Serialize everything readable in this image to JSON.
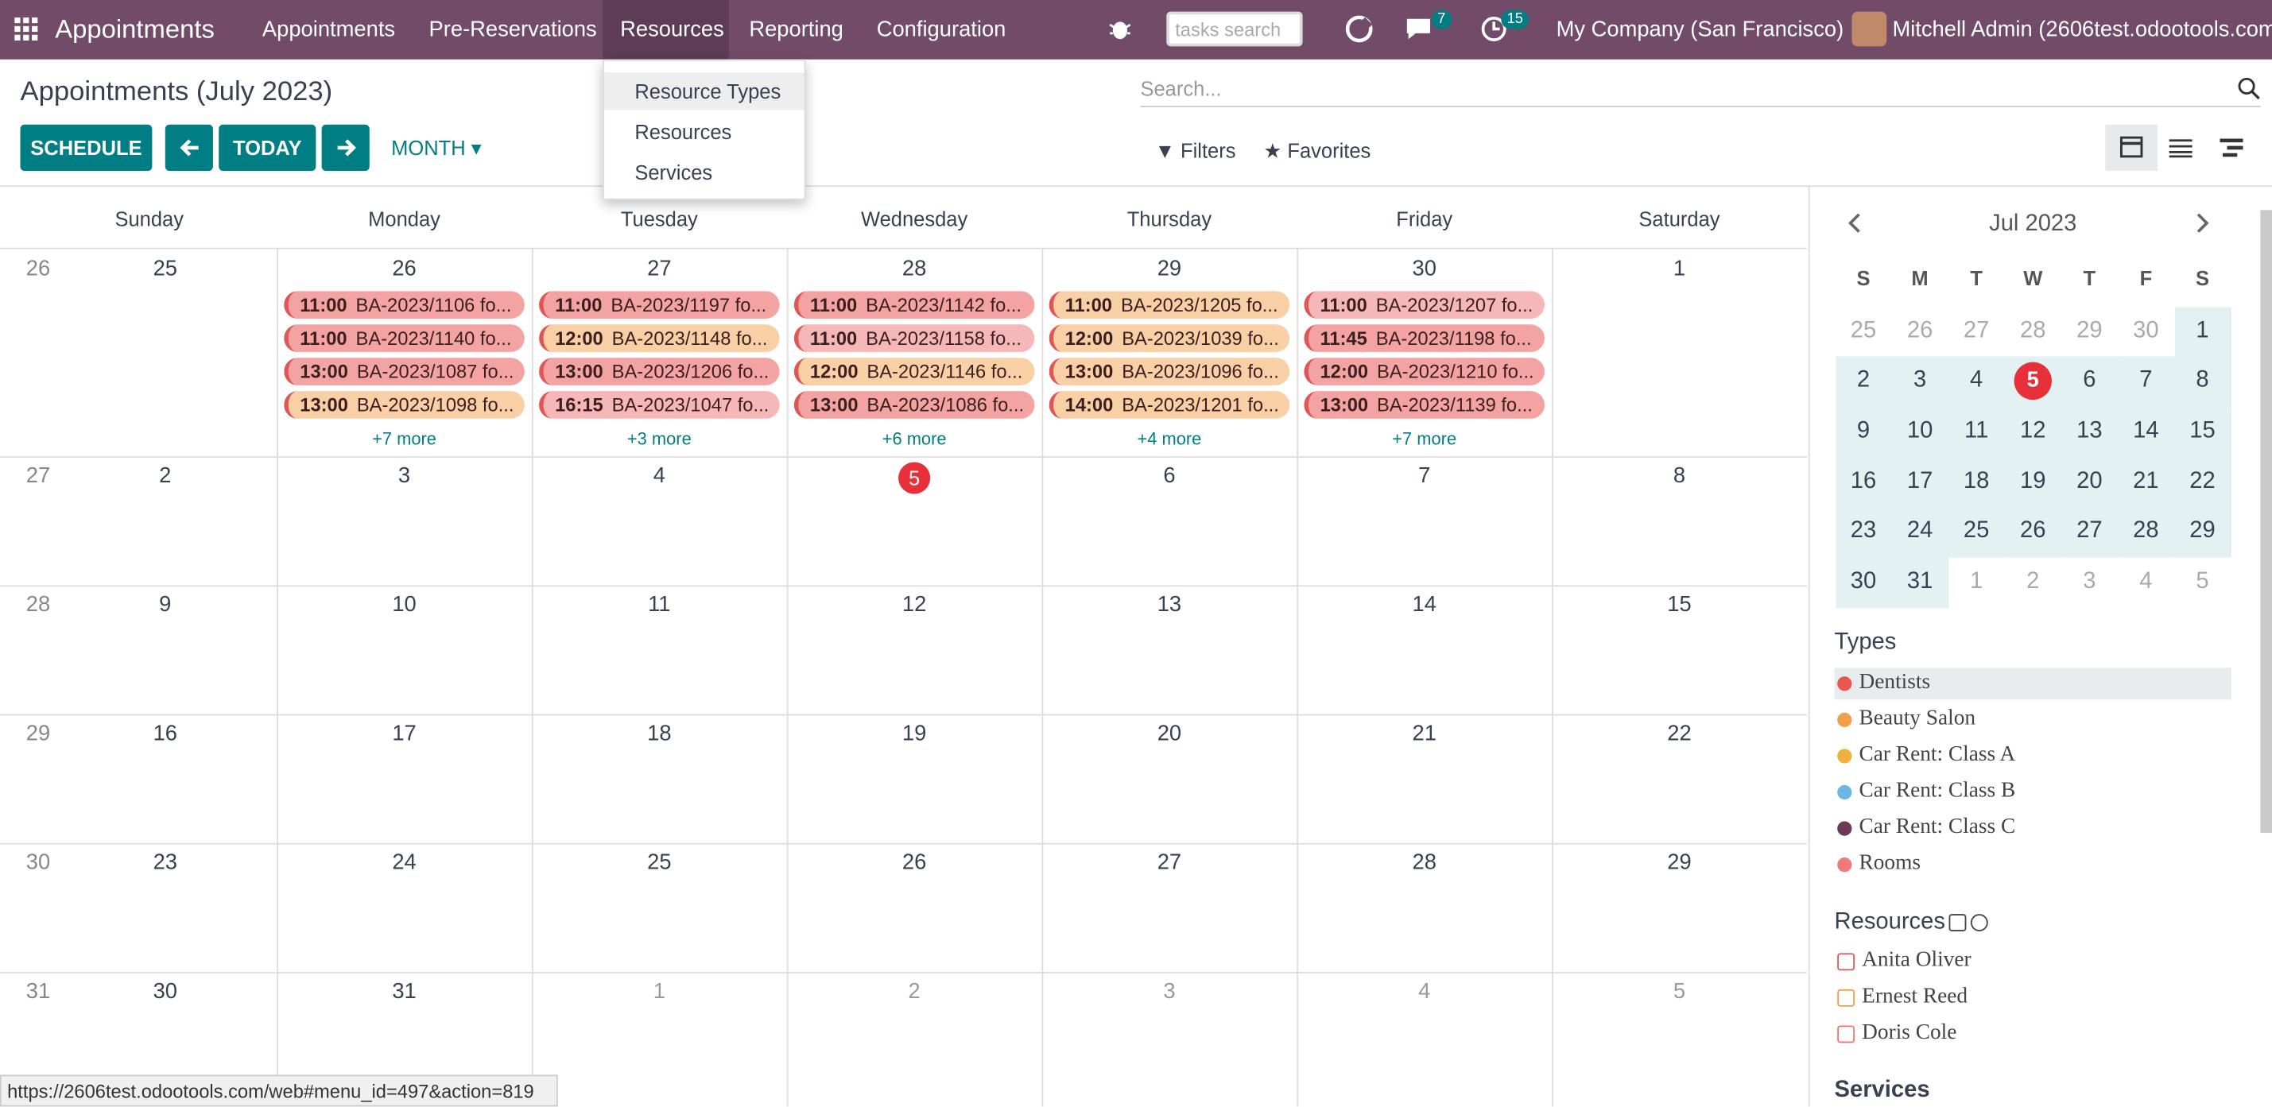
{
  "navbar": {
    "app": "Appointments",
    "menu": [
      "Appointments",
      "Pre-Reservations",
      "Resources",
      "Reporting",
      "Configuration"
    ],
    "search_placeholder": "tasks search",
    "messages_count": "7",
    "activities_count": "15",
    "company": "My Company (San Francisco)",
    "user": "Mitchell Admin (2606test.odootools.com)"
  },
  "dropdown": [
    "Resource Types",
    "Resources",
    "Services"
  ],
  "control": {
    "title": "Appointments (July 2023)",
    "schedule": "SCHEDULE",
    "today": "TODAY",
    "scale": "MONTH",
    "search_placeholder": "Search...",
    "filters": "Filters",
    "favorites": "Favorites"
  },
  "calendar": {
    "weekdays": [
      "Sunday",
      "Monday",
      "Tuesday",
      "Wednesday",
      "Thursday",
      "Friday",
      "Saturday"
    ],
    "weeks": [
      {
        "number": 26,
        "days": [
          {
            "day": 25
          },
          {
            "day": 26,
            "events": [
              {
                "time": "11:00",
                "name": "BA-2023/1106 fo...",
                "color": "#f4a3a3"
              },
              {
                "time": "11:00",
                "name": "BA-2023/1140 fo...",
                "color": "#f4a3a3"
              },
              {
                "time": "13:00",
                "name": "BA-2023/1087 fo...",
                "color": "#f4a3a3"
              },
              {
                "time": "13:00",
                "name": "BA-2023/1098 fo...",
                "color": "#f9cfa6"
              }
            ],
            "more": "+7 more"
          },
          {
            "day": 27,
            "events": [
              {
                "time": "11:00",
                "name": "BA-2023/1197 fo...",
                "color": "#f4a3a3"
              },
              {
                "time": "12:00",
                "name": "BA-2023/1148 fo...",
                "color": "#f9cfa6"
              },
              {
                "time": "13:00",
                "name": "BA-2023/1206 fo...",
                "color": "#f4a3a3"
              },
              {
                "time": "16:15",
                "name": "BA-2023/1047 fo...",
                "color": "#f5b7b7"
              }
            ],
            "more": "+3 more"
          },
          {
            "day": 28,
            "events": [
              {
                "time": "11:00",
                "name": "BA-2023/1142 fo...",
                "color": "#f4a3a3"
              },
              {
                "time": "11:00",
                "name": "BA-2023/1158 fo...",
                "color": "#f5b7b7"
              },
              {
                "time": "12:00",
                "name": "BA-2023/1146 fo...",
                "color": "#f9cfa6"
              },
              {
                "time": "13:00",
                "name": "BA-2023/1086 fo...",
                "color": "#f4a3a3"
              }
            ],
            "more": "+6 more"
          },
          {
            "day": 29,
            "events": [
              {
                "time": "11:00",
                "name": "BA-2023/1205 fo...",
                "color": "#f9cfa6"
              },
              {
                "time": "12:00",
                "name": "BA-2023/1039 fo...",
                "color": "#f9cfa6"
              },
              {
                "time": "13:00",
                "name": "BA-2023/1096 fo...",
                "color": "#f9cfa6"
              },
              {
                "time": "14:00",
                "name": "BA-2023/1201 fo...",
                "color": "#f9cfa6"
              }
            ],
            "more": "+4 more"
          },
          {
            "day": 30,
            "events": [
              {
                "time": "11:00",
                "name": "BA-2023/1207 fo...",
                "color": "#f5b7b7"
              },
              {
                "time": "11:45",
                "name": "BA-2023/1198 fo...",
                "color": "#f4a3a3"
              },
              {
                "time": "12:00",
                "name": "BA-2023/1210 fo...",
                "color": "#f4a3a3"
              },
              {
                "time": "13:00",
                "name": "BA-2023/1139 fo...",
                "color": "#f4a3a3"
              }
            ],
            "more": "+7 more"
          },
          {
            "day": 1
          }
        ]
      },
      {
        "number": 27,
        "days": [
          {
            "day": 2
          },
          {
            "day": 3
          },
          {
            "day": 4
          },
          {
            "day": 5,
            "highlight": true
          },
          {
            "day": 6
          },
          {
            "day": 7
          },
          {
            "day": 8
          }
        ]
      },
      {
        "number": 28,
        "days": [
          {
            "day": 9
          },
          {
            "day": 10
          },
          {
            "day": 11
          },
          {
            "day": 12
          },
          {
            "day": 13
          },
          {
            "day": 14
          },
          {
            "day": 15
          }
        ]
      },
      {
        "number": 29,
        "days": [
          {
            "day": 16
          },
          {
            "day": 17
          },
          {
            "day": 18
          },
          {
            "day": 19
          },
          {
            "day": 20
          },
          {
            "day": 21
          },
          {
            "day": 22
          }
        ]
      },
      {
        "number": 30,
        "days": [
          {
            "day": 23
          },
          {
            "day": 24
          },
          {
            "day": 25
          },
          {
            "day": 26
          },
          {
            "day": 27
          },
          {
            "day": 28
          },
          {
            "day": 29
          }
        ]
      },
      {
        "number": 31,
        "days": [
          {
            "day": 30
          },
          {
            "day": 31
          },
          {
            "day": 1,
            "muted": true
          },
          {
            "day": 2,
            "muted": true
          },
          {
            "day": 3,
            "muted": true
          },
          {
            "day": 4,
            "muted": true
          },
          {
            "day": 5,
            "muted": true
          }
        ]
      }
    ]
  },
  "sidebar": {
    "mini_calendar": {
      "title": "Jul 2023",
      "weekdays": [
        "S",
        "M",
        "T",
        "W",
        "T",
        "F",
        "S"
      ],
      "weeks": [
        [
          {
            "day": 25,
            "muted": true
          },
          {
            "day": 26,
            "muted": true
          },
          {
            "day": 27,
            "muted": true
          },
          {
            "day": 28,
            "muted": true
          },
          {
            "day": 29,
            "muted": true
          },
          {
            "day": 30,
            "muted": true
          },
          {
            "day": 1
          }
        ],
        [
          {
            "day": 2
          },
          {
            "day": 3
          },
          {
            "day": 4
          },
          {
            "day": 5,
            "highlight": true
          },
          {
            "day": 6
          },
          {
            "day": 7
          },
          {
            "day": 8
          }
        ],
        [
          {
            "day": 9
          },
          {
            "day": 10
          },
          {
            "day": 11
          },
          {
            "day": 12
          },
          {
            "day": 13
          },
          {
            "day": 14
          },
          {
            "day": 15
          }
        ],
        [
          {
            "day": 16
          },
          {
            "day": 17
          },
          {
            "day": 18
          },
          {
            "day": 19
          },
          {
            "day": 20
          },
          {
            "day": 21
          },
          {
            "day": 22
          }
        ],
        [
          {
            "day": 23
          },
          {
            "day": 24
          },
          {
            "day": 25
          },
          {
            "day": 26
          },
          {
            "day": 27
          },
          {
            "day": 28
          },
          {
            "day": 29
          }
        ],
        [
          {
            "day": 30
          },
          {
            "day": 31
          },
          {
            "day": 1,
            "muted": true
          },
          {
            "day": 2,
            "muted": true
          },
          {
            "day": 3,
            "muted": true
          },
          {
            "day": 4,
            "muted": true
          },
          {
            "day": 5,
            "muted": true
          }
        ]
      ]
    },
    "types_title": "Types",
    "types": [
      {
        "name": "Dentists",
        "color": "#e8574f"
      },
      {
        "name": "Beauty Salon",
        "color": "#f0a04b"
      },
      {
        "name": "Car Rent: Class A",
        "color": "#f0b03c"
      },
      {
        "name": "Car Rent: Class B",
        "color": "#6cb6e4"
      },
      {
        "name": "Car Rent: Class C",
        "color": "#6b3a5a"
      },
      {
        "name": "Rooms",
        "color": "#ee7a7a"
      }
    ],
    "resources_title": "Resources",
    "resources": [
      {
        "name": "Anita Oliver",
        "color": "#e05a5a"
      },
      {
        "name": "Ernest Reed",
        "color": "#f0a04b"
      },
      {
        "name": "Doris Cole",
        "color": "#e8776f"
      }
    ],
    "services_title": "Services"
  },
  "status_url": "https://2606test.odootools.com/web#menu_id=497&action=819"
}
